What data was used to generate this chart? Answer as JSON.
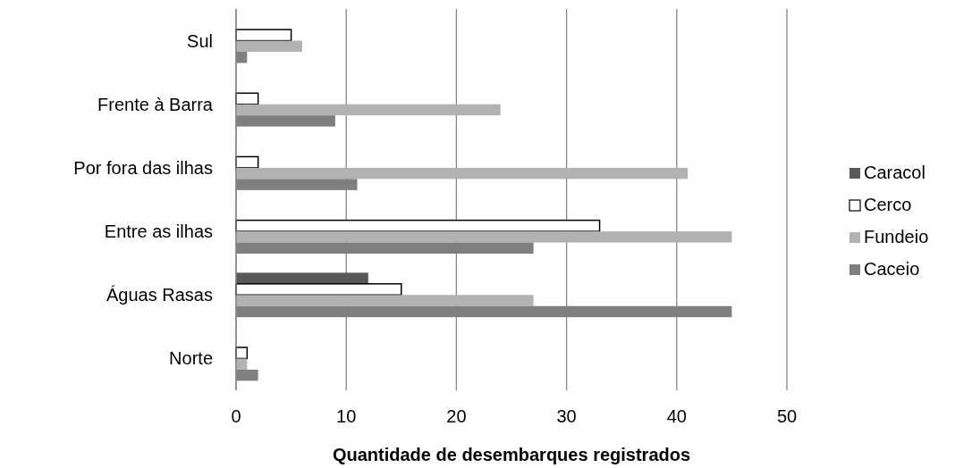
{
  "chart_data": {
    "type": "bar",
    "orientation": "horizontal",
    "xlabel": "Quantidade de desembarques registrados",
    "categories": [
      "Sul",
      "Frente à Barra",
      "Por fora das ilhas",
      "Entre as ilhas",
      "Águas Rasas",
      "Norte"
    ],
    "series": [
      {
        "name": "Caracol",
        "color": "#595959",
        "values": [
          null,
          null,
          null,
          null,
          12,
          null
        ]
      },
      {
        "name": "Cerco",
        "color": "#ffffff",
        "values": [
          5,
          2,
          2,
          33,
          15,
          1
        ]
      },
      {
        "name": "Fundeio",
        "color": "#b2b2b2",
        "values": [
          6,
          24,
          41,
          45,
          27,
          1
        ]
      },
      {
        "name": "Caceio",
        "color": "#7f7f7f",
        "values": [
          1,
          9,
          11,
          27,
          45,
          2
        ]
      }
    ],
    "xlim": [
      0,
      50
    ],
    "xticks": [
      0,
      10,
      20,
      30,
      40,
      50
    ],
    "grid": "x",
    "legend": "right"
  }
}
